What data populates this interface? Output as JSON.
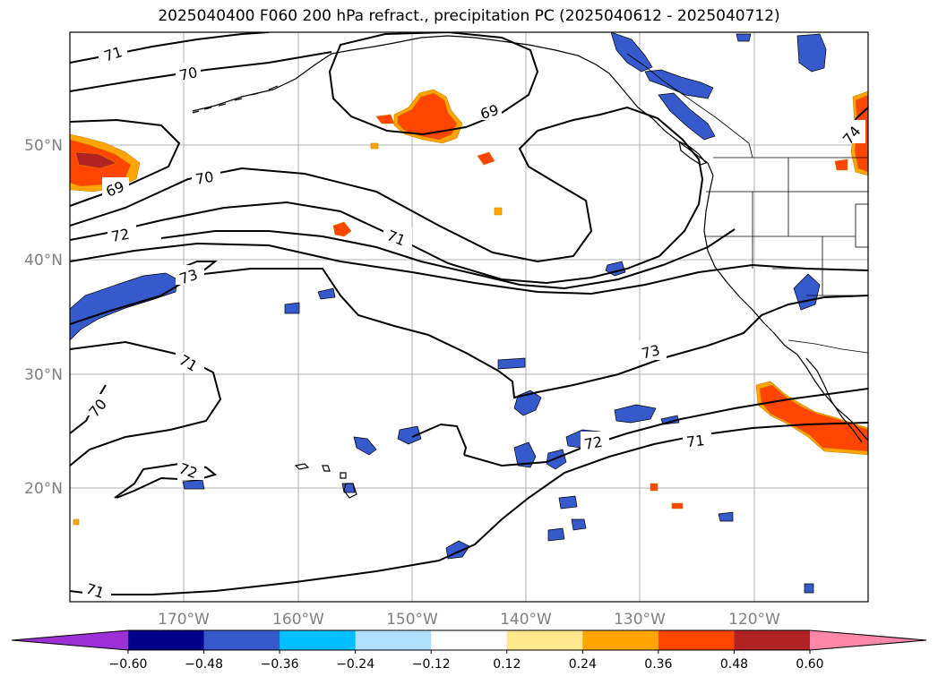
{
  "title": "2025040400 F060 200 hPa refract., precipitation PC (2025040612 - 2025040712)",
  "lat_labels": [
    "50°N",
    "40°N",
    "30°N",
    "20°N"
  ],
  "lon_labels": [
    "170°W",
    "160°W",
    "150°W",
    "140°W",
    "130°W",
    "120°W"
  ],
  "contour_labels": [
    "71",
    "70",
    "69",
    "70",
    "69",
    "72",
    "71",
    "73",
    "71",
    "70",
    "72",
    "73",
    "71",
    "72",
    "71",
    "74"
  ],
  "colorbar": {
    "ticks": [
      "−0.60",
      "−0.48",
      "−0.36",
      "−0.24",
      "−0.12",
      "0.12",
      "0.24",
      "0.36",
      "0.48",
      "0.60"
    ],
    "colors": [
      "#9b30d6",
      "#00008b",
      "#3659cc",
      "#00bfff",
      "#b0e0ff",
      "#ffffff",
      "#ffe88c",
      "#ffa500",
      "#ff4500",
      "#b22222",
      "#ff88aa"
    ]
  },
  "palette": {
    "neg_light": "#b0e0ff",
    "neg_mid": "#00bfff",
    "neg_blue": "#3659cc",
    "pos_yellow": "#ffe88c",
    "pos_orange": "#ffa500",
    "pos_red": "#ff4500",
    "pos_dark": "#b22222"
  }
}
